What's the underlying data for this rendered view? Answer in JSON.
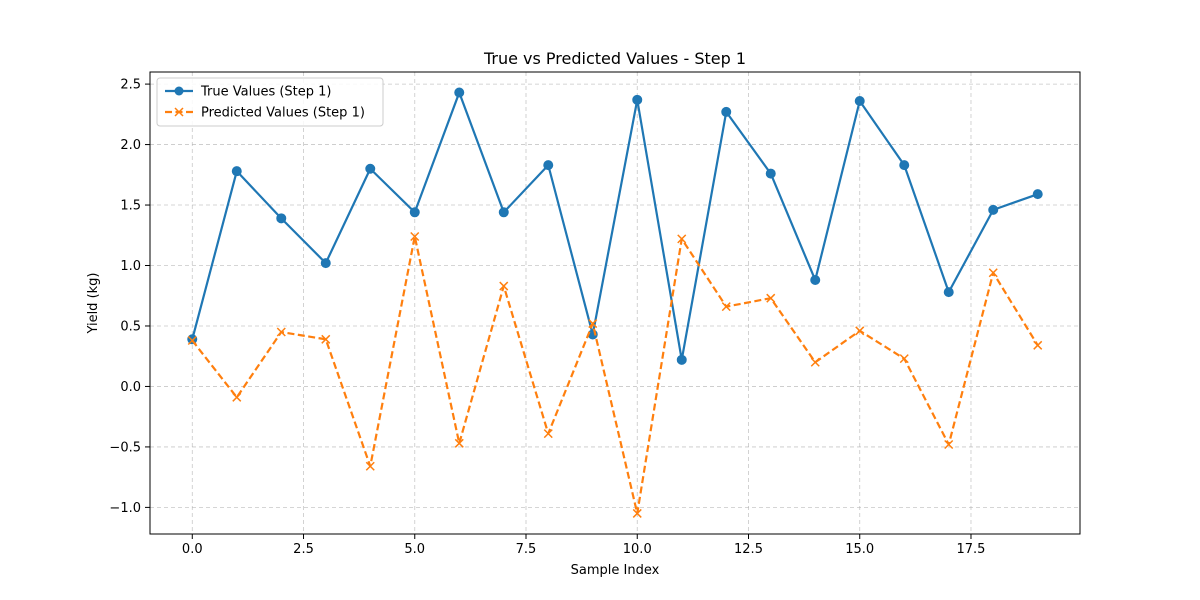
{
  "chart_data": {
    "type": "line",
    "title": "True vs Predicted Values - Step 1",
    "xlabel": "Sample Index",
    "ylabel": "Yield (kg)",
    "xlim": [
      -0.95,
      19.95
    ],
    "ylim": [
      -1.22,
      2.6
    ],
    "xticks": [
      0.0,
      2.5,
      5.0,
      7.5,
      10.0,
      12.5,
      15.0,
      17.5
    ],
    "xtick_labels": [
      "0.0",
      "2.5",
      "5.0",
      "7.5",
      "10.0",
      "12.5",
      "15.0",
      "17.5"
    ],
    "yticks": [
      -1.0,
      -0.5,
      0.0,
      0.5,
      1.0,
      1.5,
      2.0,
      2.5
    ],
    "ytick_labels": [
      "−1.0",
      "−0.5",
      "0.0",
      "0.5",
      "1.0",
      "1.5",
      "2.0",
      "2.5"
    ],
    "grid": true,
    "legend_position": "top-left",
    "x": [
      0,
      1,
      2,
      3,
      4,
      5,
      6,
      7,
      8,
      9,
      10,
      11,
      12,
      13,
      14,
      15,
      16,
      17,
      18,
      19
    ],
    "series": [
      {
        "name": "True Values (Step 1)",
        "color": "#1f77b4",
        "marker": "circle",
        "linestyle": "solid",
        "values": [
          0.39,
          1.78,
          1.39,
          1.02,
          1.8,
          1.44,
          2.43,
          1.44,
          1.83,
          0.43,
          2.37,
          0.22,
          2.27,
          1.76,
          0.88,
          2.36,
          1.83,
          0.78,
          1.46,
          1.59
        ]
      },
      {
        "name": "Predicted Values (Step 1)",
        "color": "#ff7f0e",
        "marker": "x",
        "linestyle": "dashed",
        "values": [
          0.38,
          -0.09,
          0.45,
          0.39,
          -0.66,
          1.24,
          -0.47,
          0.83,
          -0.39,
          0.52,
          -1.05,
          1.22,
          0.66,
          0.73,
          0.2,
          0.46,
          0.23,
          -0.48,
          0.94,
          0.34
        ]
      }
    ]
  }
}
